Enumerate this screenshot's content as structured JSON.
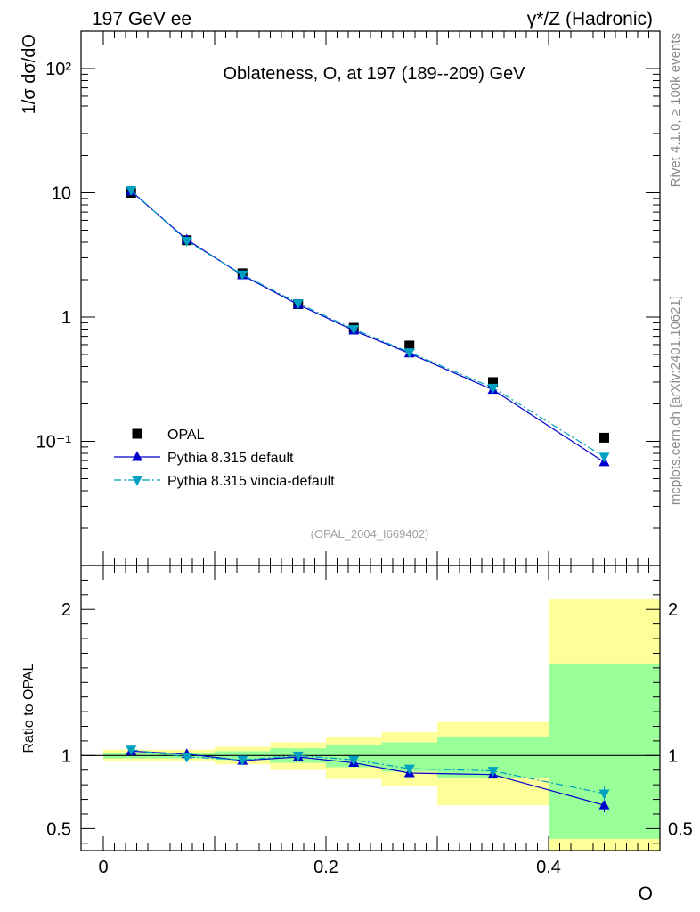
{
  "header": {
    "left": "197 GeV ee",
    "right": "γ*/Z (Hadronic)"
  },
  "side_labels": {
    "rivet": "Rivet 4.1.0, ≥ 100k events",
    "mcplots": "mcplots.cern.ch [arXiv:2401.10621]"
  },
  "chart_data": [
    {
      "type": "line",
      "panel": "main",
      "title": "Oblateness, O, at 197 (189--209) GeV",
      "ylabel": "1/σ  dσ/dO",
      "yscale": "log",
      "ylim": [
        0.01,
        200
      ],
      "xlim": [
        -0.02,
        0.5
      ],
      "y_ticks": [
        {
          "v": 100,
          "label": "10²"
        },
        {
          "v": 10,
          "label": "10"
        },
        {
          "v": 1,
          "label": "1"
        },
        {
          "v": 0.1,
          "label": "10⁻¹"
        }
      ],
      "ref_id": "(OPAL_2004_I669402)",
      "bins": [
        [
          0,
          0.05
        ],
        [
          0.05,
          0.1
        ],
        [
          0.1,
          0.15
        ],
        [
          0.15,
          0.2
        ],
        [
          0.2,
          0.25
        ],
        [
          0.25,
          0.3
        ],
        [
          0.3,
          0.4
        ],
        [
          0.4,
          0.5
        ]
      ],
      "x": [
        0.025,
        0.075,
        0.125,
        0.175,
        0.225,
        0.275,
        0.35,
        0.45
      ],
      "series": [
        {
          "name": "OPAL",
          "marker": "square",
          "color": "#000000",
          "values": [
            10.0,
            4.15,
            2.25,
            1.27,
            0.82,
            0.59,
            0.3,
            0.107
          ]
        },
        {
          "name": "Pythia 8.315 default",
          "marker": "triangle-up",
          "color": "#0000cc",
          "line": "solid",
          "values": [
            10.3,
            4.2,
            2.17,
            1.26,
            0.78,
            0.51,
            0.26,
            0.068
          ]
        },
        {
          "name": "Pythia 8.315 vincia-default",
          "marker": "triangle-down",
          "color": "#00a0c0",
          "line": "dashdot",
          "values": [
            10.5,
            4.1,
            2.2,
            1.29,
            0.8,
            0.52,
            0.27,
            0.075
          ]
        }
      ]
    },
    {
      "type": "line",
      "panel": "ratio",
      "ylabel": "Ratio to OPAL",
      "xlabel": "O",
      "ylim": [
        0.35,
        2.3
      ],
      "xlim": [
        -0.02,
        0.5
      ],
      "x_ticks": [
        {
          "v": 0,
          "label": "0"
        },
        {
          "v": 0.2,
          "label": "0.2"
        },
        {
          "v": 0.4,
          "label": "0.4"
        }
      ],
      "y_ticks": [
        {
          "v": 0.5,
          "label": "0.5"
        },
        {
          "v": 1,
          "label": "1"
        },
        {
          "v": 2,
          "label": "2"
        }
      ],
      "bins": [
        [
          0,
          0.05
        ],
        [
          0.05,
          0.1
        ],
        [
          0.1,
          0.15
        ],
        [
          0.15,
          0.2
        ],
        [
          0.2,
          0.25
        ],
        [
          0.25,
          0.3
        ],
        [
          0.3,
          0.4
        ],
        [
          0.4,
          0.5
        ]
      ],
      "x": [
        0.025,
        0.075,
        0.125,
        0.175,
        0.225,
        0.275,
        0.35,
        0.45
      ],
      "band_outer": [
        [
          0.96,
          1.04
        ],
        [
          0.96,
          1.04
        ],
        [
          0.94,
          1.06
        ],
        [
          0.9,
          1.09
        ],
        [
          0.84,
          1.13
        ],
        [
          0.79,
          1.16
        ],
        [
          0.66,
          1.23
        ],
        [
          0.32,
          2.07
        ]
      ],
      "band_inner": [
        [
          0.98,
          1.02
        ],
        [
          0.98,
          1.02
        ],
        [
          0.97,
          1.03
        ],
        [
          0.95,
          1.05
        ],
        [
          0.92,
          1.07
        ],
        [
          0.89,
          1.09
        ],
        [
          0.85,
          1.13
        ],
        [
          0.43,
          1.63
        ]
      ],
      "series": [
        {
          "name": "Pythia 8.315 default",
          "marker": "triangle-up",
          "color": "#0000cc",
          "line": "solid",
          "values": [
            1.03,
            1.01,
            0.965,
            0.99,
            0.95,
            0.88,
            0.87,
            0.66
          ]
        },
        {
          "name": "Pythia 8.315 vincia-default",
          "marker": "triangle-down",
          "color": "#00a0c0",
          "line": "dashdot",
          "values": [
            1.04,
            0.99,
            0.97,
            1.0,
            0.97,
            0.91,
            0.895,
            0.74
          ]
        }
      ]
    }
  ]
}
